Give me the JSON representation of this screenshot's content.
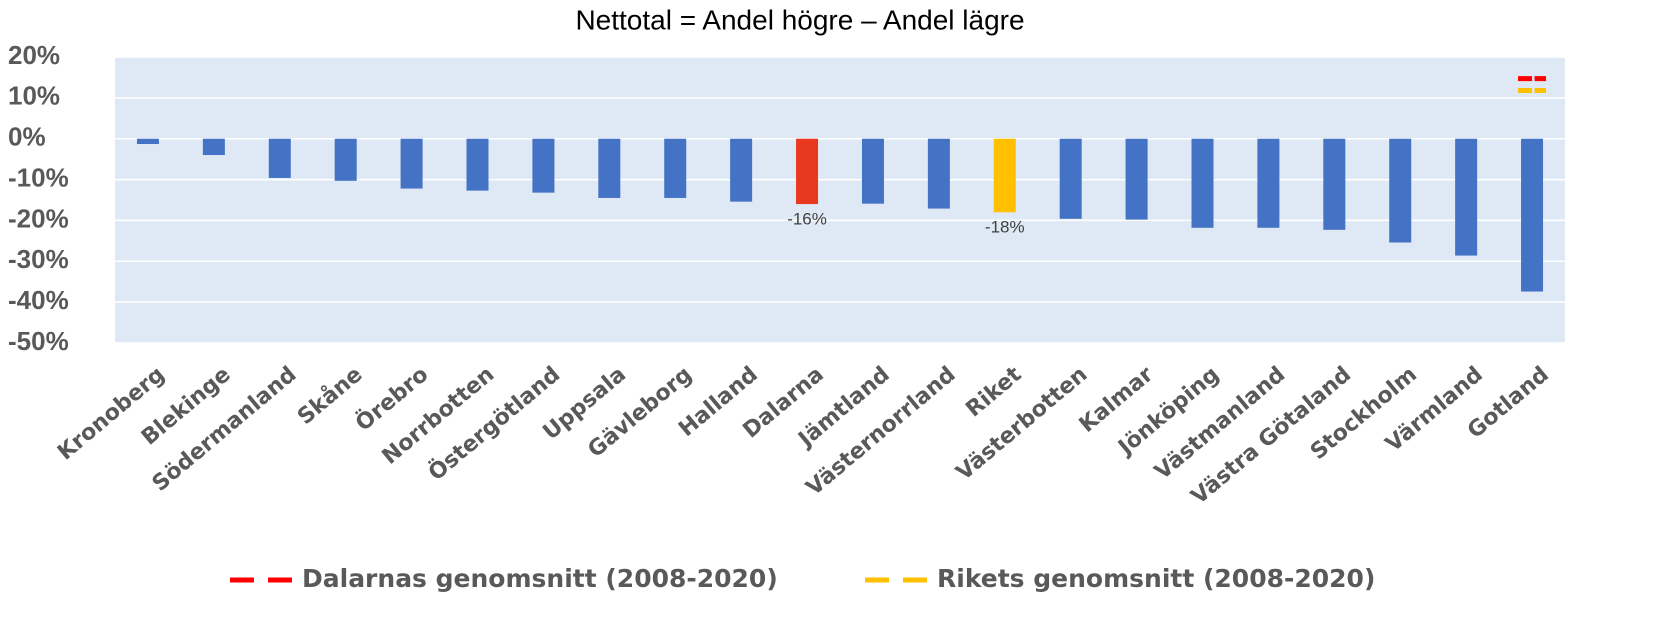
{
  "chart_data": {
    "type": "bar",
    "title": "Nettotal = Andel högre – Andel lägre",
    "categories": [
      "Kronoberg",
      "Blekinge",
      "Södermanland",
      "Skåne",
      "Örebro",
      "Norrbotten",
      "Östergötland",
      "Uppsala",
      "Gävleborg",
      "Halland",
      "Dalarna",
      "Jämtland",
      "Västernorrland",
      "Riket",
      "Västerbotten",
      "Kalmar",
      "Jönköping",
      "Västmanland",
      "Västra Götaland",
      "Stockholm",
      "Värmland",
      "Gotland"
    ],
    "values": [
      -1.3,
      -4,
      -9.6,
      -10.3,
      -12.2,
      -12.7,
      -13.2,
      -14.5,
      -14.5,
      -15.4,
      -16,
      -15.9,
      -17.1,
      -18,
      -19.6,
      -19.8,
      -21.8,
      -21.8,
      -22.3,
      -25.4,
      -28.6,
      -37.4
    ],
    "value_labels": [
      null,
      null,
      null,
      null,
      null,
      null,
      null,
      null,
      null,
      null,
      "-16%",
      null,
      null,
      "-18%",
      null,
      null,
      null,
      null,
      null,
      null,
      null,
      null
    ],
    "colors": [
      "#4472c4",
      "#4472c4",
      "#4472c4",
      "#4472c4",
      "#4472c4",
      "#4472c4",
      "#4472c4",
      "#4472c4",
      "#4472c4",
      "#4472c4",
      "#e8391e",
      "#4472c4",
      "#4472c4",
      "#ffc000",
      "#4472c4",
      "#4472c4",
      "#4472c4",
      "#4472c4",
      "#4472c4",
      "#4472c4",
      "#4472c4",
      "#4472c4"
    ],
    "series": [
      {
        "name": "Dalarnas genomsnitt (2008-2020)",
        "color": "#ff0000",
        "values": [
          14.7,
          14.7,
          14.7,
          14.7,
          14.7,
          14.7,
          14.7,
          14.7,
          14.7,
          14.7,
          14.7,
          14.7,
          14.7,
          14.7,
          14.7,
          14.7,
          14.7,
          14.7,
          14.7,
          14.7,
          14.7,
          14.7
        ]
      },
      {
        "name": "Rikets genomsnitt (2008-2020)",
        "color": "#ffc000",
        "values": [
          11.8,
          11.8,
          11.8,
          11.8,
          11.8,
          11.8,
          11.8,
          11.8,
          11.8,
          11.8,
          11.8,
          11.8,
          11.8,
          11.8,
          11.8,
          11.8,
          11.8,
          11.8,
          11.8,
          11.8,
          11.8,
          11.8
        ]
      }
    ],
    "ylim": [
      -50,
      20
    ],
    "yticks": [
      {
        "value": -50,
        "label": "-50%"
      },
      {
        "value": -40,
        "label": "-40%"
      },
      {
        "value": -30,
        "label": "-30%"
      },
      {
        "value": -20,
        "label": "-20%"
      },
      {
        "value": -10,
        "label": "-10%"
      },
      {
        "value": 0,
        "label": "0%"
      },
      {
        "value": 10,
        "label": "10%"
      },
      {
        "value": 20,
        "label": "20%"
      }
    ],
    "grid": true,
    "legend": "bottom"
  }
}
